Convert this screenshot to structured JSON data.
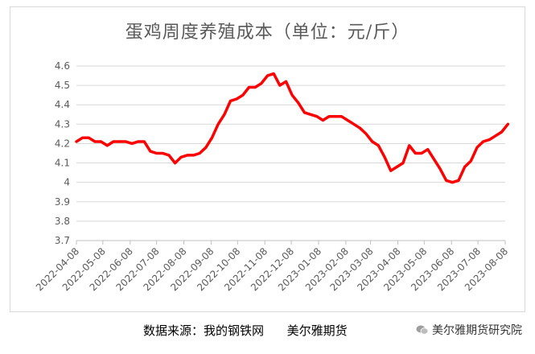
{
  "chart_data": {
    "type": "line",
    "title": "蛋鸡周度养殖成本（单位：元/斤）",
    "xlabel": "",
    "ylabel": "",
    "ylim": [
      3.7,
      4.6
    ],
    "yticks": [
      "3.7",
      "3.8",
      "3.9",
      "4",
      "4.1",
      "4.2",
      "4.3",
      "4.4",
      "4.5",
      "4.6"
    ],
    "x_tick_labels": [
      "2022-04-08",
      "2022-05-08",
      "2022-06-08",
      "2022-07-08",
      "2022-08-08",
      "2022-09-08",
      "2022-10-08",
      "2022-11-08",
      "2022-12-08",
      "2023-01-08",
      "2023-02-08",
      "2023-03-08",
      "2023-04-08",
      "2023-05-08",
      "2023-06-08",
      "2023-07-08",
      "2023-08-08"
    ],
    "grid": "horizontal",
    "line_color": "#ff0000",
    "series": [
      {
        "x": [
          "2022-04-08",
          "2022-04-15",
          "2022-04-22",
          "2022-04-29",
          "2022-05-06",
          "2022-05-13",
          "2022-05-20",
          "2022-05-27",
          "2022-06-03",
          "2022-06-10",
          "2022-06-17",
          "2022-06-24",
          "2022-07-01",
          "2022-07-08",
          "2022-07-15",
          "2022-07-22",
          "2022-07-29",
          "2022-08-05",
          "2022-08-12",
          "2022-08-19",
          "2022-08-26",
          "2022-09-02",
          "2022-09-09",
          "2022-09-16",
          "2022-09-23",
          "2022-09-30",
          "2022-10-07",
          "2022-10-14",
          "2022-10-21",
          "2022-10-28",
          "2022-11-04",
          "2022-11-11",
          "2022-11-18",
          "2022-11-25",
          "2022-12-02",
          "2022-12-09",
          "2022-12-16",
          "2022-12-23",
          "2022-12-30",
          "2023-01-06",
          "2023-01-13",
          "2023-01-20",
          "2023-01-27",
          "2023-02-03",
          "2023-02-10",
          "2023-02-17",
          "2023-02-24",
          "2023-03-03",
          "2023-03-10",
          "2023-03-17",
          "2023-03-24",
          "2023-03-31",
          "2023-04-07",
          "2023-04-14",
          "2023-04-21",
          "2023-04-28",
          "2023-05-05",
          "2023-05-12",
          "2023-05-19",
          "2023-05-26",
          "2023-06-02",
          "2023-06-09",
          "2023-06-16",
          "2023-06-23",
          "2023-06-30",
          "2023-07-07",
          "2023-07-14",
          "2023-07-21",
          "2023-07-28",
          "2023-08-04",
          "2023-08-11"
        ],
        "values": [
          4.21,
          4.23,
          4.23,
          4.21,
          4.21,
          4.19,
          4.21,
          4.21,
          4.21,
          4.2,
          4.21,
          4.21,
          4.16,
          4.15,
          4.15,
          4.14,
          4.1,
          4.13,
          4.14,
          4.14,
          4.15,
          4.18,
          4.23,
          4.3,
          4.35,
          4.42,
          4.43,
          4.45,
          4.49,
          4.49,
          4.51,
          4.55,
          4.56,
          4.5,
          4.52,
          4.45,
          4.41,
          4.36,
          4.35,
          4.34,
          4.32,
          4.34,
          4.34,
          4.34,
          4.32,
          4.3,
          4.28,
          4.25,
          4.21,
          4.19,
          4.13,
          4.06,
          4.08,
          4.1,
          4.19,
          4.15,
          4.15,
          4.17,
          4.12,
          4.07,
          4.01,
          4.0,
          4.01,
          4.08,
          4.11,
          4.18,
          4.21,
          4.22,
          4.24,
          4.26,
          4.3
        ]
      }
    ]
  },
  "footer": {
    "source": "数据来源：我的钢铁网      美尔雅期货",
    "watermark": "美尔雅期货研究院"
  }
}
